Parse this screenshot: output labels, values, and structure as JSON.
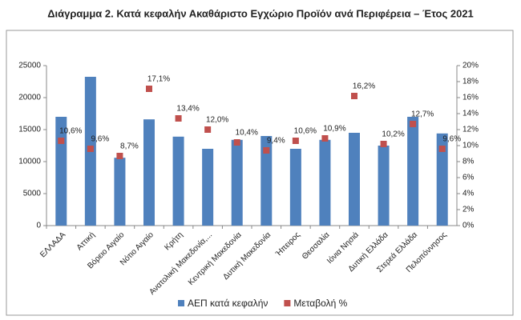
{
  "chart_data": {
    "type": "bar",
    "title": "Διάγραμμα 2. Κατά κεφαλήν Ακαθάριστο Εγχώριο Προϊόν ανά Περιφέρεια – Έτος 2021",
    "categories": [
      "ΕΛΛΑΔΑ",
      "Αττική",
      "Βόρειο Αιγαίο",
      "Νότιο Αιγαίο",
      "Κρήτη",
      "Ανατολική Μακεδονία,...",
      "Κεντρική Μακεδονία",
      "Δυτική Μακεδονία",
      "Ήπειρος",
      "Θεσσαλία",
      "Ιόνια Νησιά",
      "Δυτική Ελλάδα",
      "Στερεά Ελλάδα",
      "Πελοπόννησος"
    ],
    "series": [
      {
        "name": "ΑΕΠ κατά κεφαλήν",
        "type": "bar",
        "color": "#4f81bd",
        "values": [
          17000,
          23250,
          10600,
          16600,
          13900,
          12000,
          13400,
          14000,
          12000,
          13400,
          14500,
          12500,
          17000,
          14400
        ]
      },
      {
        "name": "Μεταβολή %",
        "type": "scatter",
        "axis": "y2",
        "color": "#c0504d",
        "values": [
          10.6,
          9.6,
          8.7,
          17.1,
          13.4,
          12.0,
          10.4,
          9.4,
          10.6,
          10.9,
          16.2,
          10.2,
          12.7,
          9.6
        ],
        "value_labels": [
          "10,6%",
          "9,6%",
          "8,7%",
          "17,1%",
          "13,4%",
          "12,0%",
          "10,4%",
          "9,4%",
          "10,6%",
          "10,9%",
          "16,2%",
          "10,2%",
          "12,7%",
          "9,6%"
        ]
      }
    ],
    "ylim": [
      0,
      25000
    ],
    "yticks": [
      0,
      5000,
      10000,
      15000,
      20000,
      25000
    ],
    "y2lim": [
      0,
      20
    ],
    "y2ticks": [
      {
        "value": 0,
        "label": "0%"
      },
      {
        "value": 2,
        "label": "2%"
      },
      {
        "value": 4,
        "label": "4%"
      },
      {
        "value": 6,
        "label": "6%"
      },
      {
        "value": 8,
        "label": "8%"
      },
      {
        "value": 10,
        "label": "10%"
      },
      {
        "value": 12,
        "label": "12%"
      },
      {
        "value": 14,
        "label": "14%"
      },
      {
        "value": 16,
        "label": "16%"
      },
      {
        "value": 18,
        "label": "18%"
      },
      {
        "value": 20,
        "label": "20%"
      }
    ],
    "grid": false,
    "legend": "bottom"
  }
}
